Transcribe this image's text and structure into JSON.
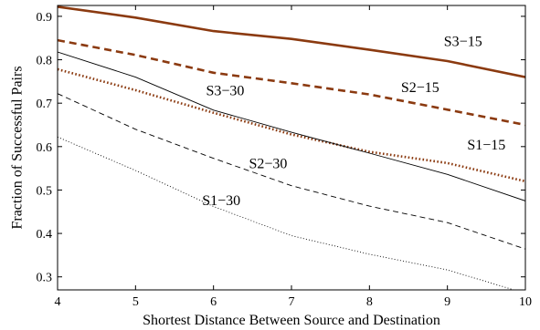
{
  "chart_data": {
    "type": "line",
    "title": "",
    "xlabel": "Shortest Distance Between Source and Destination",
    "ylabel": "Fraction of Successful Pairs",
    "xlim": [
      4,
      10
    ],
    "ylim": [
      0.27,
      0.925
    ],
    "xticks": [
      4,
      5,
      6,
      7,
      8,
      9,
      10
    ],
    "yticks": [
      0.3,
      0.4,
      0.5,
      0.6,
      0.7,
      0.8,
      0.9
    ],
    "grid": false,
    "legend": "none (series labeled directly on the lines)",
    "x": [
      4,
      5,
      6,
      7,
      8,
      9,
      10
    ],
    "series": [
      {
        "name": "S3−15",
        "values": [
          0.922,
          0.897,
          0.866,
          0.848,
          0.823,
          0.797,
          0.76
        ],
        "color": "#8b3a10",
        "style": "solid",
        "weight": "thick"
      },
      {
        "name": "S2−15",
        "values": [
          0.845,
          0.811,
          0.77,
          0.746,
          0.72,
          0.685,
          0.65
        ],
        "color": "#8b3a10",
        "style": "dashed",
        "weight": "thick"
      },
      {
        "name": "S1−15",
        "values": [
          0.778,
          0.73,
          0.678,
          0.628,
          0.588,
          0.562,
          0.52
        ],
        "color": "#8b3a10",
        "style": "dotted",
        "weight": "thick"
      },
      {
        "name": "S3−30",
        "values": [
          0.818,
          0.76,
          0.684,
          0.633,
          0.585,
          0.536,
          0.475
        ],
        "color": "#000000",
        "style": "solid",
        "weight": "thin"
      },
      {
        "name": "S2−30",
        "values": [
          0.722,
          0.64,
          0.573,
          0.51,
          0.463,
          0.425,
          0.364
        ],
        "color": "#000000",
        "style": "dashed",
        "weight": "thin"
      },
      {
        "name": "S1−30",
        "values": [
          0.622,
          0.545,
          0.462,
          0.395,
          0.352,
          0.316,
          0.262
        ],
        "color": "#000000",
        "style": "dotted",
        "weight": "thin"
      }
    ],
    "annotations": [
      {
        "text": "S3−15",
        "x": 9.2,
        "y": 0.832
      },
      {
        "text": "S2−15",
        "x": 8.65,
        "y": 0.726
      },
      {
        "text": "S3−30",
        "x": 6.15,
        "y": 0.718
      },
      {
        "text": "S1−15",
        "x": 9.5,
        "y": 0.593
      },
      {
        "text": "S2−30",
        "x": 6.7,
        "y": 0.55
      },
      {
        "text": "S1−30",
        "x": 6.1,
        "y": 0.465
      }
    ]
  }
}
